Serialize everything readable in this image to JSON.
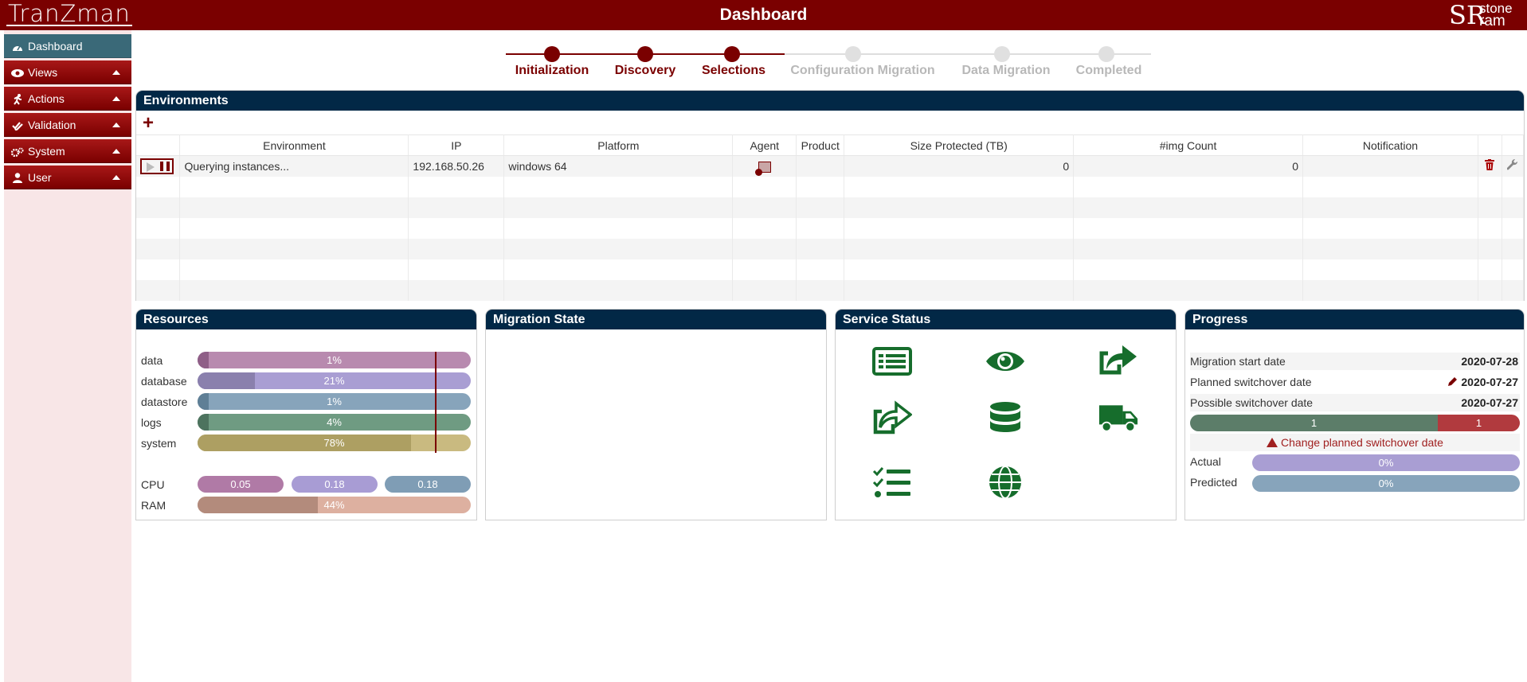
{
  "app": {
    "logo": "TranZman",
    "title": "Dashboard",
    "brand_sr": "SR",
    "brand_stone": "stone",
    "brand_ram": "ram"
  },
  "sidebar": {
    "items": [
      {
        "label": "Dashboard",
        "icon": "dashboard-icon"
      },
      {
        "label": "Views",
        "icon": "eye-icon"
      },
      {
        "label": "Actions",
        "icon": "running-icon"
      },
      {
        "label": "Validation",
        "icon": "check-double-icon"
      },
      {
        "label": "System",
        "icon": "gears-icon"
      },
      {
        "label": "User",
        "icon": "user-icon"
      }
    ]
  },
  "stepper": {
    "steps": [
      {
        "label": "Initialization",
        "done": true
      },
      {
        "label": "Discovery",
        "done": true
      },
      {
        "label": "Selections",
        "done": true
      },
      {
        "label": "Configuration Migration",
        "done": false
      },
      {
        "label": "Data Migration",
        "done": false
      },
      {
        "label": "Completed",
        "done": false
      }
    ]
  },
  "environments": {
    "title": "Environments",
    "add_label": "+",
    "columns": [
      "Environment",
      "IP",
      "Platform",
      "Agent",
      "Product",
      "Size Protected (TB)",
      "#img Count",
      "Notification"
    ],
    "rows": [
      {
        "environment": "Querying instances...",
        "ip": "192.168.50.26",
        "platform": "windows 64",
        "product": "",
        "size": "0",
        "img_count": "0",
        "notification": ""
      }
    ]
  },
  "resources": {
    "title": "Resources",
    "colors": {
      "data": "#a978a0",
      "database": "#9b8fc8",
      "datastore": "#7f9db5",
      "logs": "#6a947c",
      "system": "#b1a16a",
      "cpu1": "#a978a0",
      "cpu2": "#9b8fc8",
      "cpu3": "#7f9db5",
      "ram": "#d4a898"
    },
    "bars": [
      {
        "label": "data",
        "value": "1%",
        "fill": 0.01
      },
      {
        "label": "database",
        "value": "21%",
        "fill": 0.21
      },
      {
        "label": "datastore",
        "value": "1%",
        "fill": 0.01
      },
      {
        "label": "logs",
        "value": "4%",
        "fill": 0.04
      },
      {
        "label": "system",
        "value": "78%",
        "fill": 0.78
      }
    ],
    "cpu_label": "CPU",
    "cpu": [
      "0.05",
      "0.18",
      "0.18"
    ],
    "ram_label": "RAM",
    "ram": {
      "value": "44%",
      "fill": 0.44
    }
  },
  "migration_state": {
    "title": "Migration State"
  },
  "service_status": {
    "title": "Service Status",
    "icons": [
      "list-icon",
      "eye-icon",
      "share-icon",
      "share-alt-icon",
      "database-icon",
      "truck-icon",
      "tasks-icon",
      "globe-icon"
    ],
    "icon_color": "#166d2c"
  },
  "progress": {
    "title": "Progress",
    "migration_start_label": "Migration start date",
    "migration_start_value": "2020-07-28",
    "planned_label": "Planned switchover date",
    "planned_value": "2020-07-27",
    "possible_label": "Possible switchover date",
    "possible_value": "2020-07-27",
    "split_left": "1",
    "split_right": "1",
    "change_link": "Change planned switchover date",
    "actual_label": "Actual",
    "actual_value": "0%",
    "predicted_label": "Predicted",
    "predicted_value": "0%"
  }
}
